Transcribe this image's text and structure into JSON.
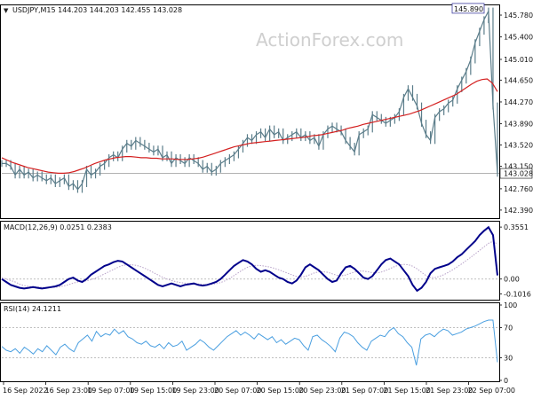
{
  "watermark": "ActionForex.com",
  "colors": {
    "price": "#5b7d8a",
    "ma": "#d42020",
    "macd": "#00008b",
    "signal": "#b9a3c9",
    "rsi": "#4a9fe0",
    "level_line": "#aaaaaa",
    "price_box_bg": "#ffffff",
    "price_box_border": "#4040a0",
    "current_bg": "#ffffff"
  },
  "chart_data": [
    {
      "type": "line",
      "panel": "price",
      "header": "USDJPY,M15  144.203 144.203 142.455 143.028",
      "symbol": "USDJPY",
      "timeframe": "M15",
      "ohlc": {
        "open": 144.203,
        "high": 144.203,
        "low": 142.455,
        "close": 143.028
      },
      "ylim": [
        142.25,
        145.95
      ],
      "y_ticks": [
        "145.780",
        "145.400",
        "145.010",
        "144.650",
        "144.270",
        "143.890",
        "143.520",
        "143.150",
        "142.760",
        "142.390"
      ],
      "tick_values": [
        145.78,
        145.4,
        145.01,
        144.65,
        144.27,
        143.89,
        143.52,
        143.15,
        142.76,
        142.39
      ],
      "high_label": "145.890",
      "high_value": 145.89,
      "current_label": "143.028",
      "current_value": 143.028,
      "series": [
        {
          "values": [
            143.2,
            143.2,
            143.15,
            143.0,
            143.1,
            143.0,
            143.05,
            142.95,
            143.0,
            142.95,
            142.9,
            142.95,
            142.85,
            142.9,
            142.95,
            142.8,
            142.85,
            142.75,
            142.85,
            143.1,
            143.0,
            143.05,
            143.15,
            143.2,
            143.3,
            143.35,
            143.3,
            143.45,
            143.55,
            143.5,
            143.6,
            143.55,
            143.5,
            143.45,
            143.4,
            143.45,
            143.3,
            143.35,
            143.2,
            143.3,
            143.25,
            143.2,
            143.3,
            143.25,
            143.2,
            143.1,
            143.15,
            143.05,
            143.1,
            143.2,
            143.25,
            143.3,
            143.35,
            143.45,
            143.55,
            143.65,
            143.6,
            143.7,
            143.75,
            143.65,
            143.8,
            143.7,
            143.75,
            143.6,
            143.65,
            143.7,
            143.75,
            143.65,
            143.7,
            143.6,
            143.65,
            143.5,
            143.7,
            143.8,
            143.85,
            143.8,
            143.75,
            143.6,
            143.5,
            143.4,
            143.7,
            143.75,
            143.8,
            144.05,
            144.0,
            143.95,
            143.9,
            143.95,
            144.0,
            144.1,
            144.35,
            144.5,
            144.35,
            144.2,
            143.9,
            143.7,
            143.6,
            144.0,
            144.1,
            144.15,
            144.25,
            144.3,
            144.5,
            144.65,
            144.8,
            145.0,
            145.3,
            145.5,
            145.7,
            145.85,
            144.2,
            143.03
          ]
        },
        {
          "name": "",
          "values": [
            143.3,
            143.26,
            143.22,
            143.19,
            143.16,
            143.13,
            143.11,
            143.09,
            143.07,
            143.05,
            143.04,
            143.03,
            143.03,
            143.04,
            143.06,
            143.09,
            143.12,
            143.16,
            143.2,
            143.23,
            143.26,
            143.28,
            143.3,
            143.31,
            143.32,
            143.32,
            143.31,
            143.3,
            143.3,
            143.29,
            143.29,
            143.28,
            143.28,
            143.28,
            143.27,
            143.27,
            143.27,
            143.28,
            143.29,
            143.31,
            143.34,
            143.37,
            143.4,
            143.43,
            143.46,
            143.49,
            143.51,
            143.53,
            143.55,
            143.56,
            143.57,
            143.58,
            143.59,
            143.6,
            143.61,
            143.62,
            143.63,
            143.64,
            143.65,
            143.66,
            143.68,
            143.69,
            143.7,
            143.72,
            143.74,
            143.76,
            143.78,
            143.81,
            143.83,
            143.85,
            143.88,
            143.9,
            143.92,
            143.94,
            143.96,
            143.98,
            144.0,
            144.02,
            144.04,
            144.06,
            144.09,
            144.12,
            144.16,
            144.2,
            144.24,
            144.28,
            144.32,
            144.36,
            144.4,
            144.46,
            144.52,
            144.58,
            144.63,
            144.66,
            144.67,
            144.6,
            144.45
          ]
        }
      ]
    },
    {
      "type": "line",
      "panel": "macd",
      "header": "MACD(12,26,9) 0.0251 0.2383",
      "indicator": "MACD(12,26,9)",
      "main_value": 0.0251,
      "signal_value": 0.2383,
      "ylim": [
        -0.135,
        0.38
      ],
      "y_ticks": [
        "0.3551",
        "0.00",
        "-0.1016"
      ],
      "tick_values": [
        0.3551,
        0.0,
        -0.1016
      ],
      "series": [
        {
          "values": [
            0.0,
            -0.02,
            -0.04,
            -0.05,
            -0.06,
            -0.065,
            -0.06,
            -0.055,
            -0.06,
            -0.065,
            -0.06,
            -0.055,
            -0.05,
            -0.04,
            -0.02,
            0.0,
            0.01,
            -0.01,
            -0.02,
            0.0,
            0.03,
            0.05,
            0.07,
            0.09,
            0.1,
            0.115,
            0.125,
            0.12,
            0.1,
            0.08,
            0.06,
            0.04,
            0.02,
            0.0,
            -0.02,
            -0.04,
            -0.05,
            -0.04,
            -0.03,
            -0.04,
            -0.05,
            -0.04,
            -0.035,
            -0.03,
            -0.04,
            -0.045,
            -0.04,
            -0.03,
            -0.02,
            0.0,
            0.03,
            0.06,
            0.09,
            0.11,
            0.13,
            0.12,
            0.1,
            0.07,
            0.05,
            0.06,
            0.05,
            0.03,
            0.01,
            0.0,
            -0.02,
            -0.03,
            -0.01,
            0.03,
            0.08,
            0.1,
            0.08,
            0.06,
            0.03,
            0.0,
            -0.02,
            -0.01,
            0.04,
            0.08,
            0.09,
            0.07,
            0.04,
            0.01,
            0.0,
            0.02,
            0.06,
            0.1,
            0.13,
            0.14,
            0.12,
            0.1,
            0.06,
            0.02,
            -0.04,
            -0.08,
            -0.06,
            -0.02,
            0.04,
            0.07,
            0.08,
            0.09,
            0.1,
            0.12,
            0.15,
            0.17,
            0.2,
            0.23,
            0.26,
            0.3,
            0.33,
            0.3537,
            0.3,
            0.0251
          ]
        },
        {
          "values": [
            0.01,
            0.0,
            -0.01,
            -0.02,
            -0.035,
            -0.045,
            -0.05,
            -0.052,
            -0.054,
            -0.056,
            -0.058,
            -0.058,
            -0.056,
            -0.052,
            -0.046,
            -0.038,
            -0.028,
            -0.02,
            -0.016,
            -0.012,
            -0.004,
            0.006,
            0.02,
            0.035,
            0.05,
            0.065,
            0.08,
            0.092,
            0.098,
            0.098,
            0.094,
            0.086,
            0.074,
            0.06,
            0.044,
            0.028,
            0.012,
            0.0,
            -0.01,
            -0.018,
            -0.024,
            -0.028,
            -0.03,
            -0.032,
            -0.034,
            -0.036,
            -0.038,
            -0.036,
            -0.032,
            -0.024,
            -0.012,
            0.004,
            0.024,
            0.044,
            0.064,
            0.08,
            0.09,
            0.094,
            0.092,
            0.088,
            0.082,
            0.074,
            0.064,
            0.052,
            0.04,
            0.028,
            0.018,
            0.014,
            0.018,
            0.03,
            0.042,
            0.05,
            0.05,
            0.046,
            0.036,
            0.026,
            0.022,
            0.028,
            0.038,
            0.048,
            0.054,
            0.054,
            0.05,
            0.044,
            0.042,
            0.048,
            0.058,
            0.072,
            0.086,
            0.096,
            0.1,
            0.098,
            0.088,
            0.07,
            0.046,
            0.024,
            0.012,
            0.01,
            0.018,
            0.03,
            0.046,
            0.064,
            0.084,
            0.104,
            0.126,
            0.148,
            0.172,
            0.196,
            0.22,
            0.244,
            0.258,
            0.2383
          ]
        }
      ]
    },
    {
      "type": "line",
      "panel": "rsi",
      "header": "RSI(14) 24.1211",
      "indicator": "RSI(14)",
      "value": 24.1211,
      "ylim": [
        0,
        100
      ],
      "y_ticks": [
        "100",
        "70",
        "30",
        "0"
      ],
      "tick_values": [
        100,
        70,
        30,
        0
      ],
      "series": [
        {
          "values": [
            45,
            40,
            38,
            42,
            36,
            44,
            40,
            35,
            42,
            38,
            46,
            40,
            34,
            44,
            48,
            42,
            38,
            50,
            55,
            60,
            52,
            65,
            58,
            62,
            60,
            68,
            62,
            66,
            58,
            55,
            50,
            48,
            52,
            46,
            44,
            48,
            42,
            50,
            45,
            47,
            52,
            40,
            44,
            48,
            54,
            50,
            44,
            40,
            46,
            52,
            58,
            62,
            66,
            60,
            64,
            60,
            55,
            62,
            58,
            54,
            58,
            50,
            54,
            48,
            52,
            56,
            54,
            46,
            40,
            58,
            60,
            54,
            50,
            45,
            38,
            56,
            64,
            62,
            58,
            50,
            44,
            40,
            52,
            56,
            60,
            58,
            66,
            70,
            62,
            58,
            50,
            44,
            20,
            55,
            60,
            62,
            58,
            64,
            68,
            66,
            60,
            62,
            64,
            68,
            70,
            72,
            75,
            78,
            80,
            80,
            24.1211
          ]
        }
      ]
    }
  ],
  "x_axis": {
    "tick_labels": [
      "16 Sep 2022",
      "16 Sep 23:00",
      "19 Sep 07:00",
      "19 Sep 15:00",
      "19 Sep 23:00",
      "20 Sep 07:00",
      "20 Sep 15:00",
      "20 Sep 23:00",
      "21 Sep 07:00",
      "21 Sep 15:00",
      "21 Sep 23:00",
      "22 Sep 07:00"
    ]
  }
}
